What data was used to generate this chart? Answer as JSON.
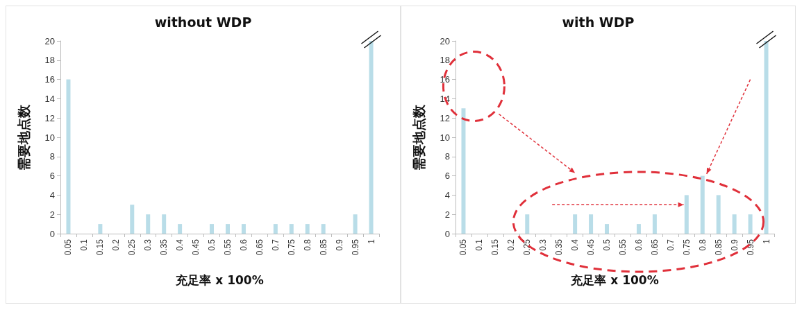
{
  "chart_data": [
    {
      "type": "bar",
      "title": "without WDP",
      "xlabel": "充足率 x 100%",
      "ylabel": "需要地点数",
      "categories": [
        "0.05",
        "0.1",
        "0.15",
        "0.2",
        "0.25",
        "0.3",
        "0.35",
        "0.4",
        "0.45",
        "0.5",
        "0.55",
        "0.6",
        "0.65",
        "0.7",
        "0.75",
        "0.8",
        "0.85",
        "0.9",
        "0.95",
        "1"
      ],
      "values": [
        16,
        0,
        1,
        0,
        3,
        2,
        2,
        1,
        0,
        1,
        1,
        1,
        0,
        1,
        1,
        1,
        1,
        0,
        2,
        20
      ],
      "color": "#b9dde8",
      "ylim": [
        0,
        20
      ],
      "yticks": [
        0,
        2,
        4,
        6,
        8,
        10,
        12,
        14,
        16,
        18,
        20
      ]
    },
    {
      "type": "bar",
      "title": "with WDP",
      "xlabel": "充足率 x 100%",
      "ylabel": "需要地点数",
      "categories": [
        "0.05",
        "0.1",
        "0.15",
        "0.2",
        "0.25",
        "0.3",
        "0.35",
        "0.4",
        "0.45",
        "0.5",
        "0.55",
        "0.6",
        "0.65",
        "0.7",
        "0.75",
        "0.8",
        "0.85",
        "0.9",
        "0.95",
        "1"
      ],
      "values": [
        13,
        0,
        0,
        0,
        2,
        0,
        0,
        2,
        2,
        1,
        0,
        1,
        2,
        0,
        4,
        6,
        4,
        2,
        2,
        20
      ],
      "color": "#b9dde8",
      "ylim": [
        0,
        20
      ],
      "yticks": [
        0,
        2,
        4,
        6,
        8,
        10,
        12,
        14,
        16,
        18,
        20
      ]
    }
  ]
}
